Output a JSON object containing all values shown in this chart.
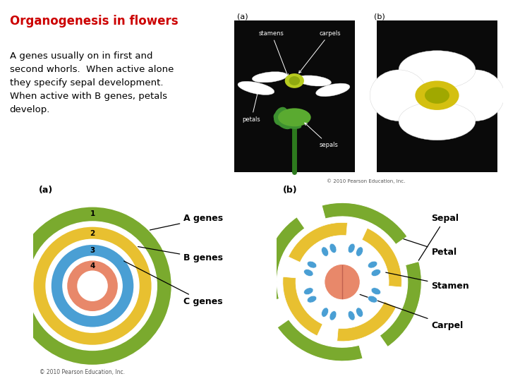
{
  "title": "Organogenesis in flowers",
  "title_color": "#cc0000",
  "body_text": "A genes usually on in first and\nsecond whorls.  When active alone\nthey specify sepal development.\nWhen active with B genes, petals\ndevelop.",
  "body_color": "#000000",
  "background_color": "#ffffff",
  "copyright": "© 2010 Pearson Education, Inc.",
  "ring_colors": [
    "#7aaa2e",
    "#e8c030",
    "#4a9fd4",
    "#e8886a"
  ],
  "ring_labels": [
    "A genes",
    "B genes",
    "C genes"
  ],
  "ring_numbers": [
    "1",
    "2",
    "3",
    "4"
  ],
  "whorl_labels": [
    "Sepal",
    "Petal",
    "Stamen",
    "Carpel"
  ],
  "sepal_color": "#7aaa2e",
  "petal_color": "#e8c030",
  "stamen_color": "#4a9fd4",
  "carpel_color": "#e8886a",
  "photo_bg": "#0a0a0a"
}
